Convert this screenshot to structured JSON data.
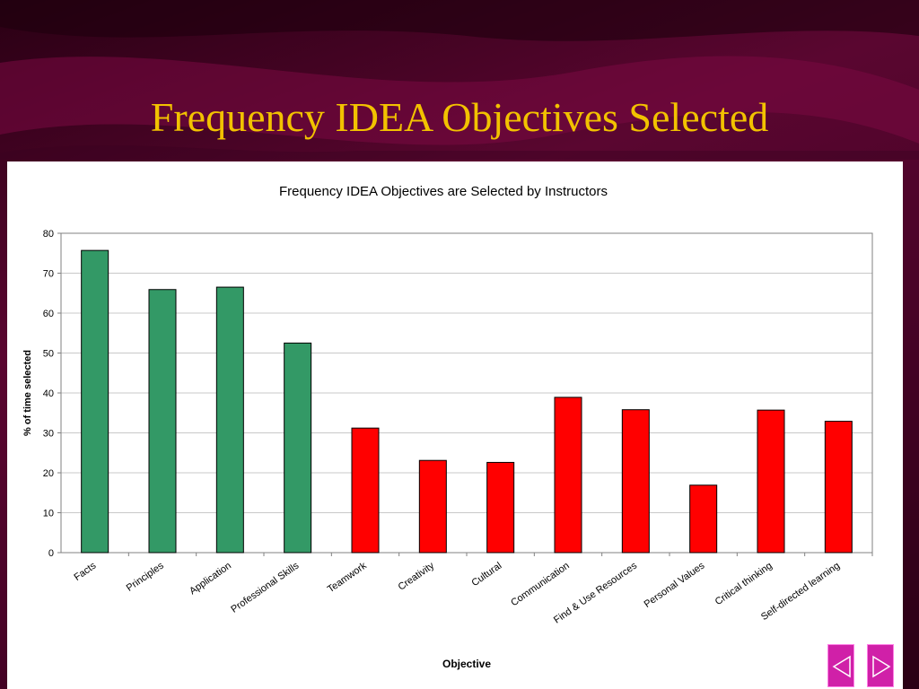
{
  "slide": {
    "title": "Frequency IDEA Objectives Selected"
  },
  "colors": {
    "title": "#f2c200",
    "background": "#4a0328",
    "essential_bar": "#339966",
    "other_bar": "#ff0000",
    "nav_button": "#d020a8"
  },
  "navigation": {
    "prev_icon": "triangle-left-icon",
    "next_icon": "triangle-right-icon"
  },
  "chart_data": {
    "type": "bar",
    "title": "Frequency IDEA Objectives are Selected by Instructors",
    "xlabel": "Objective",
    "ylabel": "% of time selected",
    "ylim": [
      0,
      80
    ],
    "yticks": [
      0,
      10,
      20,
      30,
      40,
      50,
      60,
      70,
      80
    ],
    "grid": true,
    "legend": "none",
    "categories": [
      "Facts",
      "Principles",
      "Application",
      "Professional Skills",
      "Teamwork",
      "Creativity",
      "Cultural",
      "Communication",
      "Find & Use Resources",
      "Personal Values",
      "Critical thinking",
      "Self-directed learning"
    ],
    "values": [
      75.7,
      65.9,
      66.5,
      52.5,
      31.2,
      23.1,
      22.6,
      38.9,
      35.8,
      16.9,
      35.7,
      32.9
    ],
    "bar_colors": [
      "#339966",
      "#339966",
      "#339966",
      "#339966",
      "#ff0000",
      "#ff0000",
      "#ff0000",
      "#ff0000",
      "#ff0000",
      "#ff0000",
      "#ff0000",
      "#ff0000"
    ]
  }
}
